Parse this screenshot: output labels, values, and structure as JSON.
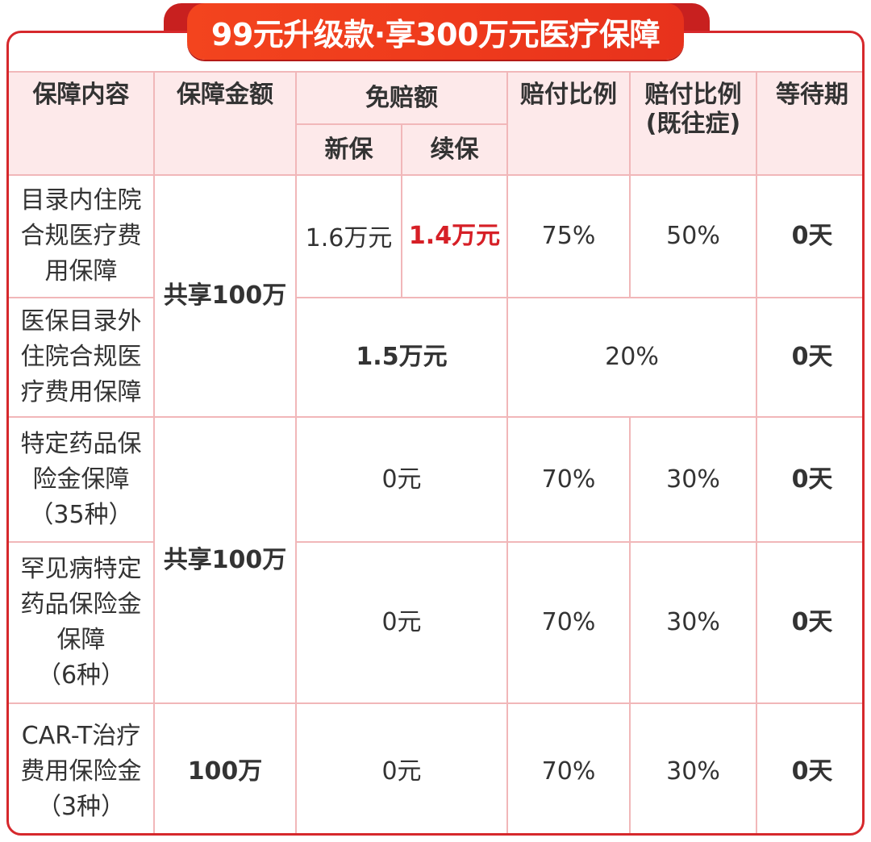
{
  "banner": {
    "title": "99元升级款·享300万元医疗保障"
  },
  "colors": {
    "accent": "#d6282c",
    "header_bg": "#fde9ea",
    "grid_line": "#f1b7b9"
  },
  "headers": {
    "content": "保障内容",
    "amount": "保障金额",
    "deductible": "免赔额",
    "new_policy": "新保",
    "renewal": "续保",
    "ratio": "赔付比例",
    "ratio_preexisting_l1": "赔付比例",
    "ratio_preexisting_l2": "(既往症)",
    "waiting": "等待期"
  },
  "rows": {
    "r1": {
      "content": [
        "目录内住院",
        "合规医疗费",
        "用保障"
      ],
      "ded_new": "1.6万元",
      "ded_renew": "1.4万元",
      "ratio": "75%",
      "ratio_pre": "50%",
      "waiting": "0天"
    },
    "shared1": "共享100万",
    "r2": {
      "content": [
        "医保目录外",
        "住院合规医",
        "疗费用保障"
      ],
      "deductible": "1.5万元",
      "ratio": "20%",
      "waiting": "0天"
    },
    "r3": {
      "content": [
        "特定药品保",
        "险金保障",
        "（35种）"
      ],
      "deductible": "0元",
      "ratio": "70%",
      "ratio_pre": "30%",
      "waiting": "0天"
    },
    "shared2": "共享100万",
    "r4": {
      "content": [
        "罕见病特定",
        "药品保险金",
        "保障",
        "（6种）"
      ],
      "deductible": "0元",
      "ratio": "70%",
      "ratio_pre": "30%",
      "waiting": "0天"
    },
    "r5": {
      "content": [
        "CAR-T治疗",
        "费用保险金",
        "（3种）"
      ],
      "amount": "100万",
      "deductible": "0元",
      "ratio": "70%",
      "ratio_pre": "30%",
      "waiting": "0天"
    }
  }
}
